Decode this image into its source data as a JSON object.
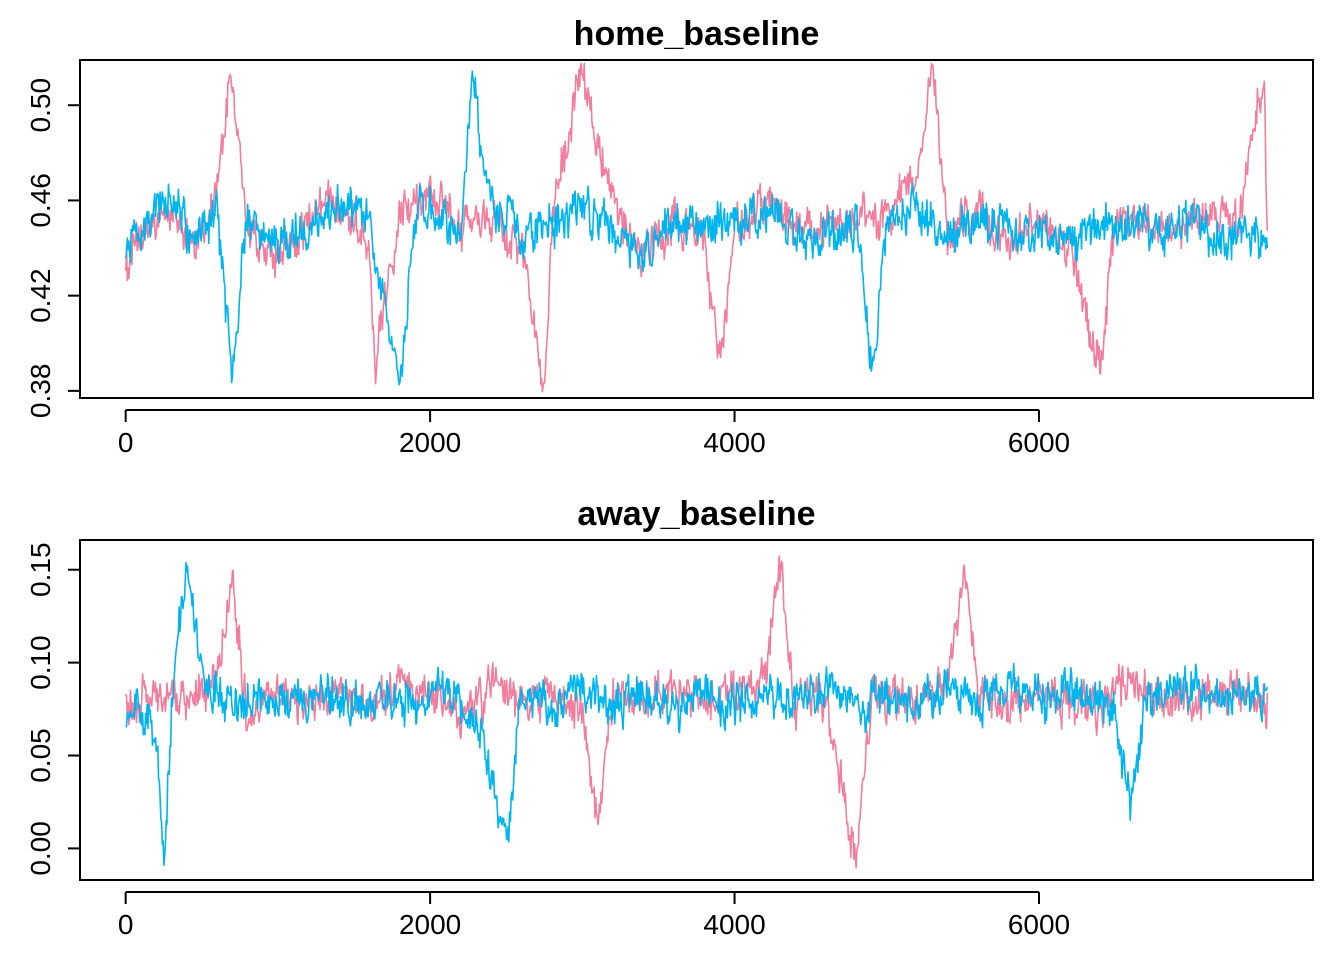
{
  "chart_data": [
    {
      "type": "line",
      "title": "home_baseline",
      "xlabel": "",
      "ylabel": "",
      "x_ticks": [
        0,
        2000,
        4000,
        6000
      ],
      "x_tick_labels": [
        "0",
        "2000",
        "4000",
        "6000"
      ],
      "xlim": [
        -300,
        7800
      ],
      "y_ticks": [
        0.38,
        0.42,
        0.46,
        0.5
      ],
      "y_tick_labels": [
        "0.38",
        "0.42",
        "0.46",
        "0.50"
      ],
      "ylim": [
        0.377,
        0.519
      ],
      "grid": false,
      "legend": "none",
      "x_range": [
        1,
        7500
      ],
      "series": [
        {
          "color": "#F27D9C",
          "points": [
            [
              0,
              0.433
            ],
            [
              150,
              0.448
            ],
            [
              300,
              0.455
            ],
            [
              450,
              0.441
            ],
            [
              600,
              0.462
            ],
            [
              690,
              0.514
            ],
            [
              800,
              0.448
            ],
            [
              1000,
              0.435
            ],
            [
              1200,
              0.452
            ],
            [
              1400,
              0.461
            ],
            [
              1600,
              0.444
            ],
            [
              1640,
              0.391
            ],
            [
              1800,
              0.458
            ],
            [
              2000,
              0.463
            ],
            [
              2200,
              0.447
            ],
            [
              2400,
              0.452
            ],
            [
              2600,
              0.44
            ],
            [
              2750,
              0.385
            ],
            [
              2800,
              0.451
            ],
            [
              2990,
              0.514
            ],
            [
              3200,
              0.455
            ],
            [
              3400,
              0.438
            ],
            [
              3600,
              0.452
            ],
            [
              3800,
              0.446
            ],
            [
              3900,
              0.387
            ],
            [
              4000,
              0.448
            ],
            [
              4200,
              0.459
            ],
            [
              4400,
              0.45
            ],
            [
              4600,
              0.446
            ],
            [
              4800,
              0.455
            ],
            [
              5000,
              0.452
            ],
            [
              5200,
              0.472
            ],
            [
              5300,
              0.514
            ],
            [
              5400,
              0.445
            ],
            [
              5600,
              0.456
            ],
            [
              5800,
              0.442
            ],
            [
              6000,
              0.451
            ],
            [
              6200,
              0.438
            ],
            [
              6400,
              0.389
            ],
            [
              6500,
              0.453
            ],
            [
              6700,
              0.452
            ],
            [
              6900,
              0.447
            ],
            [
              7100,
              0.455
            ],
            [
              7300,
              0.448
            ],
            [
              7480,
              0.515
            ],
            [
              7500,
              0.442
            ]
          ]
        },
        {
          "color": "#00B4EF",
          "points": [
            [
              0,
              0.438
            ],
            [
              150,
              0.452
            ],
            [
              300,
              0.46
            ],
            [
              450,
              0.444
            ],
            [
              600,
              0.458
            ],
            [
              700,
              0.382
            ],
            [
              800,
              0.456
            ],
            [
              1000,
              0.441
            ],
            [
              1200,
              0.448
            ],
            [
              1400,
              0.457
            ],
            [
              1600,
              0.45
            ],
            [
              1800,
              0.382
            ],
            [
              1900,
              0.455
            ],
            [
              2000,
              0.459
            ],
            [
              2200,
              0.442
            ],
            [
              2280,
              0.513
            ],
            [
              2400,
              0.456
            ],
            [
              2600,
              0.447
            ],
            [
              2800,
              0.451
            ],
            [
              3000,
              0.457
            ],
            [
              3200,
              0.449
            ],
            [
              3400,
              0.436
            ],
            [
              3600,
              0.455
            ],
            [
              3800,
              0.448
            ],
            [
              4000,
              0.451
            ],
            [
              4200,
              0.456
            ],
            [
              4400,
              0.447
            ],
            [
              4600,
              0.443
            ],
            [
              4800,
              0.452
            ],
            [
              4900,
              0.39
            ],
            [
              5000,
              0.45
            ],
            [
              5200,
              0.459
            ],
            [
              5400,
              0.443
            ],
            [
              5600,
              0.454
            ],
            [
              5800,
              0.447
            ],
            [
              6000,
              0.446
            ],
            [
              6200,
              0.443
            ],
            [
              6400,
              0.452
            ],
            [
              6600,
              0.449
            ],
            [
              6800,
              0.446
            ],
            [
              7000,
              0.451
            ],
            [
              7200,
              0.444
            ],
            [
              7400,
              0.448
            ],
            [
              7500,
              0.443
            ]
          ]
        }
      ]
    },
    {
      "type": "line",
      "title": "away_baseline",
      "xlabel": "",
      "ylabel": "",
      "x_ticks": [
        0,
        2000,
        4000,
        6000
      ],
      "x_tick_labels": [
        "0",
        "2000",
        "4000",
        "6000"
      ],
      "xlim": [
        -300,
        7800
      ],
      "y_ticks": [
        0,
        0.05,
        0.1,
        0.15
      ],
      "y_tick_labels": [
        "0.00",
        "0.05",
        "0.10",
        "0.15"
      ],
      "ylim": [
        -0.017,
        0.166
      ],
      "grid": false,
      "legend": "none",
      "x_range": [
        1,
        7500
      ],
      "series": [
        {
          "color": "#F27D9C",
          "points": [
            [
              0,
              0.075
            ],
            [
              100,
              0.08
            ],
            [
              200,
              0.085
            ],
            [
              400,
              0.078
            ],
            [
              600,
              0.09
            ],
            [
              700,
              0.147
            ],
            [
              800,
              0.072
            ],
            [
              1000,
              0.083
            ],
            [
              1200,
              0.079
            ],
            [
              1400,
              0.087
            ],
            [
              1600,
              0.076
            ],
            [
              1800,
              0.093
            ],
            [
              2000,
              0.081
            ],
            [
              2200,
              0.074
            ],
            [
              2400,
              0.088
            ],
            [
              2600,
              0.079
            ],
            [
              2800,
              0.083
            ],
            [
              3000,
              0.076
            ],
            [
              3100,
              0.008
            ],
            [
              3200,
              0.083
            ],
            [
              3400,
              0.08
            ],
            [
              3600,
              0.087
            ],
            [
              3800,
              0.079
            ],
            [
              4000,
              0.084
            ],
            [
              4200,
              0.09
            ],
            [
              4300,
              0.152
            ],
            [
              4400,
              0.081
            ],
            [
              4600,
              0.078
            ],
            [
              4800,
              -0.006
            ],
            [
              4900,
              0.083
            ],
            [
              5200,
              0.079
            ],
            [
              5400,
              0.087
            ],
            [
              5500,
              0.148
            ],
            [
              5600,
              0.082
            ],
            [
              5800,
              0.076
            ],
            [
              6000,
              0.085
            ],
            [
              6200,
              0.081
            ],
            [
              6400,
              0.077
            ],
            [
              6600,
              0.088
            ],
            [
              6800,
              0.082
            ],
            [
              7000,
              0.079
            ],
            [
              7200,
              0.086
            ],
            [
              7400,
              0.083
            ],
            [
              7500,
              0.08
            ]
          ]
        },
        {
          "color": "#00B4EF",
          "points": [
            [
              0,
              0.07
            ],
            [
              100,
              0.078
            ],
            [
              200,
              0.06
            ],
            [
              250,
              -0.01
            ],
            [
              300,
              0.072
            ],
            [
              400,
              0.158
            ],
            [
              500,
              0.09
            ],
            [
              700,
              0.076
            ],
            [
              900,
              0.082
            ],
            [
              1100,
              0.079
            ],
            [
              1300,
              0.086
            ],
            [
              1500,
              0.078
            ],
            [
              1700,
              0.081
            ],
            [
              1900,
              0.075
            ],
            [
              2100,
              0.088
            ],
            [
              2300,
              0.072
            ],
            [
              2500,
              0.006
            ],
            [
              2600,
              0.082
            ],
            [
              2800,
              0.078
            ],
            [
              3000,
              0.085
            ],
            [
              3200,
              0.079
            ],
            [
              3400,
              0.082
            ],
            [
              3600,
              0.076
            ],
            [
              3800,
              0.084
            ],
            [
              4000,
              0.078
            ],
            [
              4200,
              0.083
            ],
            [
              4400,
              0.079
            ],
            [
              4600,
              0.085
            ],
            [
              4800,
              0.077
            ],
            [
              5000,
              0.082
            ],
            [
              5200,
              0.079
            ],
            [
              5400,
              0.086
            ],
            [
              5600,
              0.078
            ],
            [
              5800,
              0.084
            ],
            [
              6000,
              0.081
            ],
            [
              6200,
              0.087
            ],
            [
              6500,
              0.075
            ],
            [
              6600,
              0.021
            ],
            [
              6700,
              0.08
            ],
            [
              6900,
              0.088
            ],
            [
              7100,
              0.082
            ],
            [
              7300,
              0.085
            ],
            [
              7500,
              0.079
            ]
          ]
        }
      ]
    }
  ]
}
